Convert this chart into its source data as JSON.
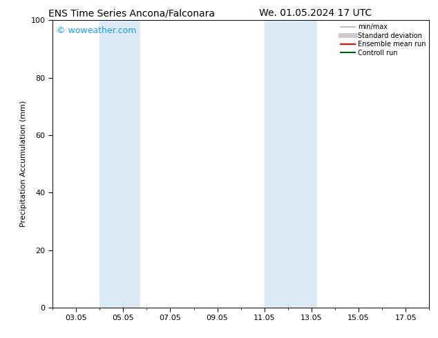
{
  "title_left": "ENS Time Series Ancona/Falconara",
  "title_right": "We. 01.05.2024 17 UTC",
  "ylabel": "Precipitation Accumulation (mm)",
  "ylim": [
    0,
    100
  ],
  "yticks": [
    0,
    20,
    40,
    60,
    80,
    100
  ],
  "xlim": [
    2.0,
    17.5
  ],
  "x_tick_labels": [
    "03.05",
    "05.05",
    "07.05",
    "09.05",
    "11.05",
    "13.05",
    "15.05",
    "17.05"
  ],
  "x_tick_positions": [
    3,
    5,
    7,
    9,
    11,
    13,
    15,
    17
  ],
  "shaded_regions": [
    {
      "x_start": 4.0,
      "x_end": 5.7,
      "color": "#dce9f5"
    },
    {
      "x_start": 11.0,
      "x_end": 13.2,
      "color": "#dce9f5"
    }
  ],
  "watermark_text": "© woweather.com",
  "watermark_color": "#1a9dff",
  "legend_entries": [
    {
      "label": "min/max",
      "color": "#b0b0b0",
      "linewidth": 1.2
    },
    {
      "label": "Standard deviation",
      "color": "#cccccc",
      "linewidth": 5
    },
    {
      "label": "Ensemble mean run",
      "color": "#ff0000",
      "linewidth": 1.5
    },
    {
      "label": "Controll run",
      "color": "#006600",
      "linewidth": 1.5
    }
  ],
  "background_color": "#ffffff",
  "plot_bg_color": "#ffffff",
  "tick_font_size": 8,
  "ylabel_font_size": 8,
  "title_font_size": 10,
  "legend_font_size": 7,
  "watermark_font_size": 9
}
